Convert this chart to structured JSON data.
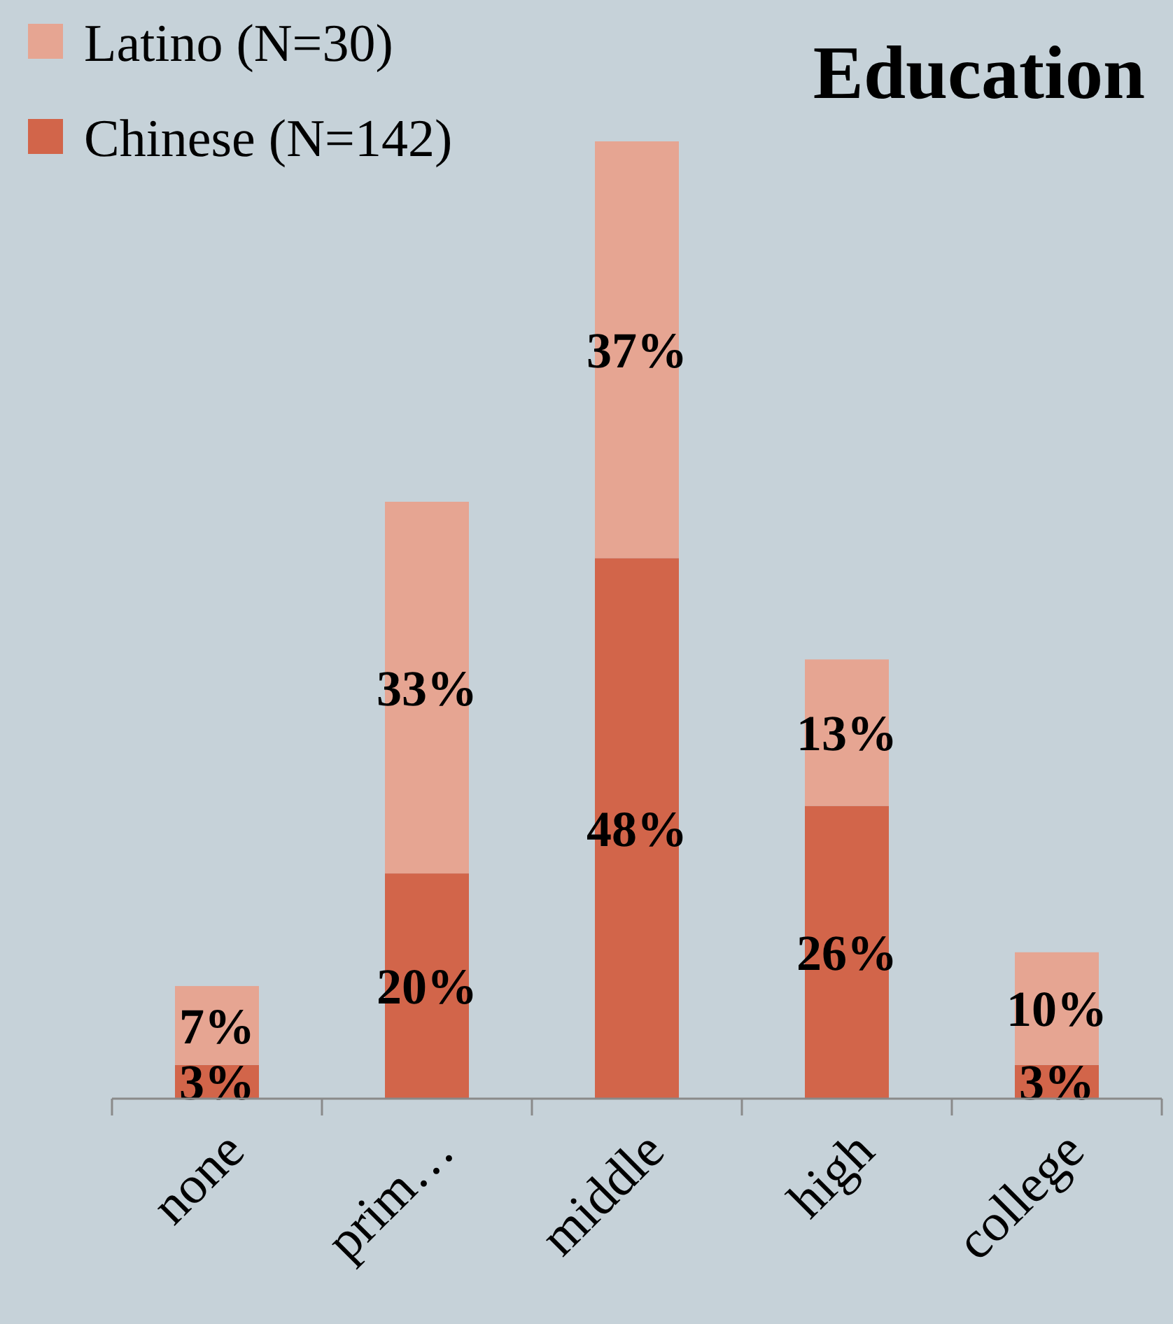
{
  "chart_data": {
    "type": "bar",
    "title": "Education",
    "stacked": true,
    "legend": "top left",
    "categories": [
      "none",
      "prim…",
      "middle",
      "high",
      "college"
    ],
    "series": [
      {
        "name": "Chinese (N=142)",
        "color": "#d2654a",
        "values": [
          3,
          20,
          48,
          26,
          3
        ],
        "value_labels": [
          "3%",
          "20%",
          "48%",
          "26%",
          "3%"
        ]
      },
      {
        "name": "Latino (N=30)",
        "color": "#e6a592",
        "values": [
          7,
          33,
          37,
          13,
          10
        ],
        "value_labels": [
          "7%",
          "33%",
          "37%",
          "13%",
          "10%"
        ]
      }
    ]
  }
}
